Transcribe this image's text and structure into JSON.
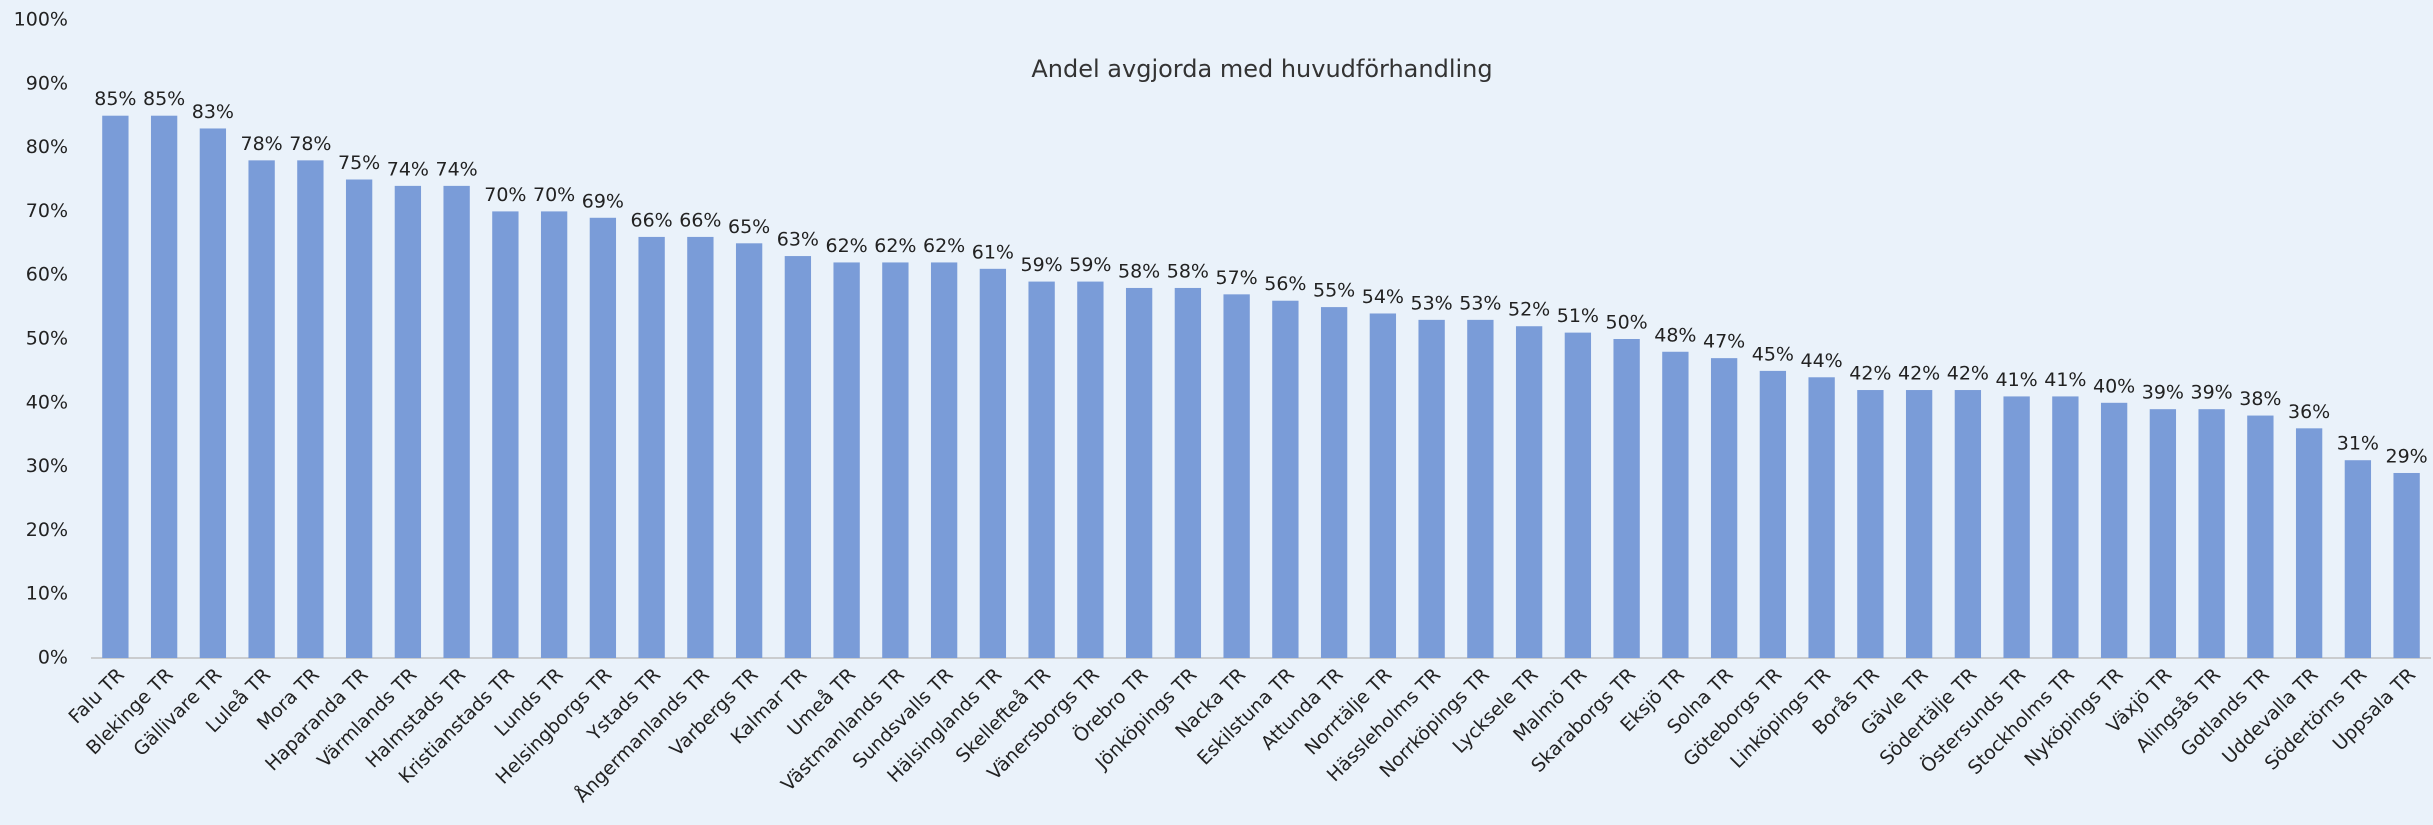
{
  "chart_data": {
    "type": "bar",
    "title": "Andel avgjorda med huvudförhandling",
    "categories": [
      "Falu TR",
      "Blekinge TR",
      "Gällivare TR",
      "Luleå TR",
      "Mora TR",
      "Haparanda TR",
      "Värmlands TR",
      "Halmstads TR",
      "Kristianstads TR",
      "Lunds TR",
      "Helsingborgs TR",
      "Ystads TR",
      "Ångermanlands TR",
      "Varbergs TR",
      "Kalmar TR",
      "Umeå TR",
      "Västmanlands TR",
      "Sundsvalls TR",
      "Hälsinglands TR",
      "Skellefteå TR",
      "Vänersborgs TR",
      "Örebro TR",
      "Jönköpings TR",
      "Nacka TR",
      "Eskilstuna TR",
      "Attunda TR",
      "Norrtälje TR",
      "Hässleholms TR",
      "Norrköpings TR",
      "Lycksele TR",
      "Malmö TR",
      "Skaraborgs TR",
      "Eksjö TR",
      "Solna TR",
      "Göteborgs TR",
      "Linköpings TR",
      "Borås TR",
      "Gävle TR",
      "Södertälje TR",
      "Östersunds TR",
      "Stockholms TR",
      "Nyköpings TR",
      "Växjö TR",
      "Alingsås TR",
      "Gotlands TR",
      "Uddevalla TR",
      "Södertörns TR",
      "Uppsala TR"
    ],
    "values": [
      85,
      85,
      83,
      78,
      78,
      75,
      74,
      74,
      70,
      70,
      69,
      66,
      66,
      65,
      63,
      62,
      62,
      62,
      61,
      59,
      59,
      58,
      58,
      57,
      56,
      55,
      54,
      53,
      53,
      52,
      51,
      50,
      48,
      47,
      45,
      44,
      42,
      42,
      42,
      41,
      41,
      40,
      39,
      39,
      38,
      36,
      31,
      29
    ],
    "value_labels": [
      "85%",
      "85%",
      "83%",
      "78%",
      "78%",
      "75%",
      "74%",
      "74%",
      "70%",
      "70%",
      "69%",
      "66%",
      "66%",
      "65%",
      "63%",
      "62%",
      "62%",
      "62%",
      "61%",
      "59%",
      "59%",
      "58%",
      "58%",
      "57%",
      "56%",
      "55%",
      "54%",
      "53%",
      "53%",
      "52%",
      "51%",
      "50%",
      "48%",
      "47%",
      "45%",
      "44%",
      "42%",
      "42%",
      "42%",
      "41%",
      "41%",
      "40%",
      "39%",
      "39%",
      "38%",
      "36%",
      "31%",
      "29%"
    ],
    "color": "#7a9cd8",
    "ylim": [
      0,
      100
    ],
    "yticks": [
      {
        "value": 0,
        "label": "0%"
      },
      {
        "value": 10,
        "label": "10%"
      },
      {
        "value": 20,
        "label": "20%"
      },
      {
        "value": 30,
        "label": "30%"
      },
      {
        "value": 40,
        "label": "40%"
      },
      {
        "value": 50,
        "label": "50%"
      },
      {
        "value": 60,
        "label": "60%"
      },
      {
        "value": 70,
        "label": "70%"
      },
      {
        "value": 80,
        "label": "80%"
      },
      {
        "value": 90,
        "label": "90%"
      },
      {
        "value": 100,
        "label": "100%"
      }
    ],
    "grid": false
  }
}
